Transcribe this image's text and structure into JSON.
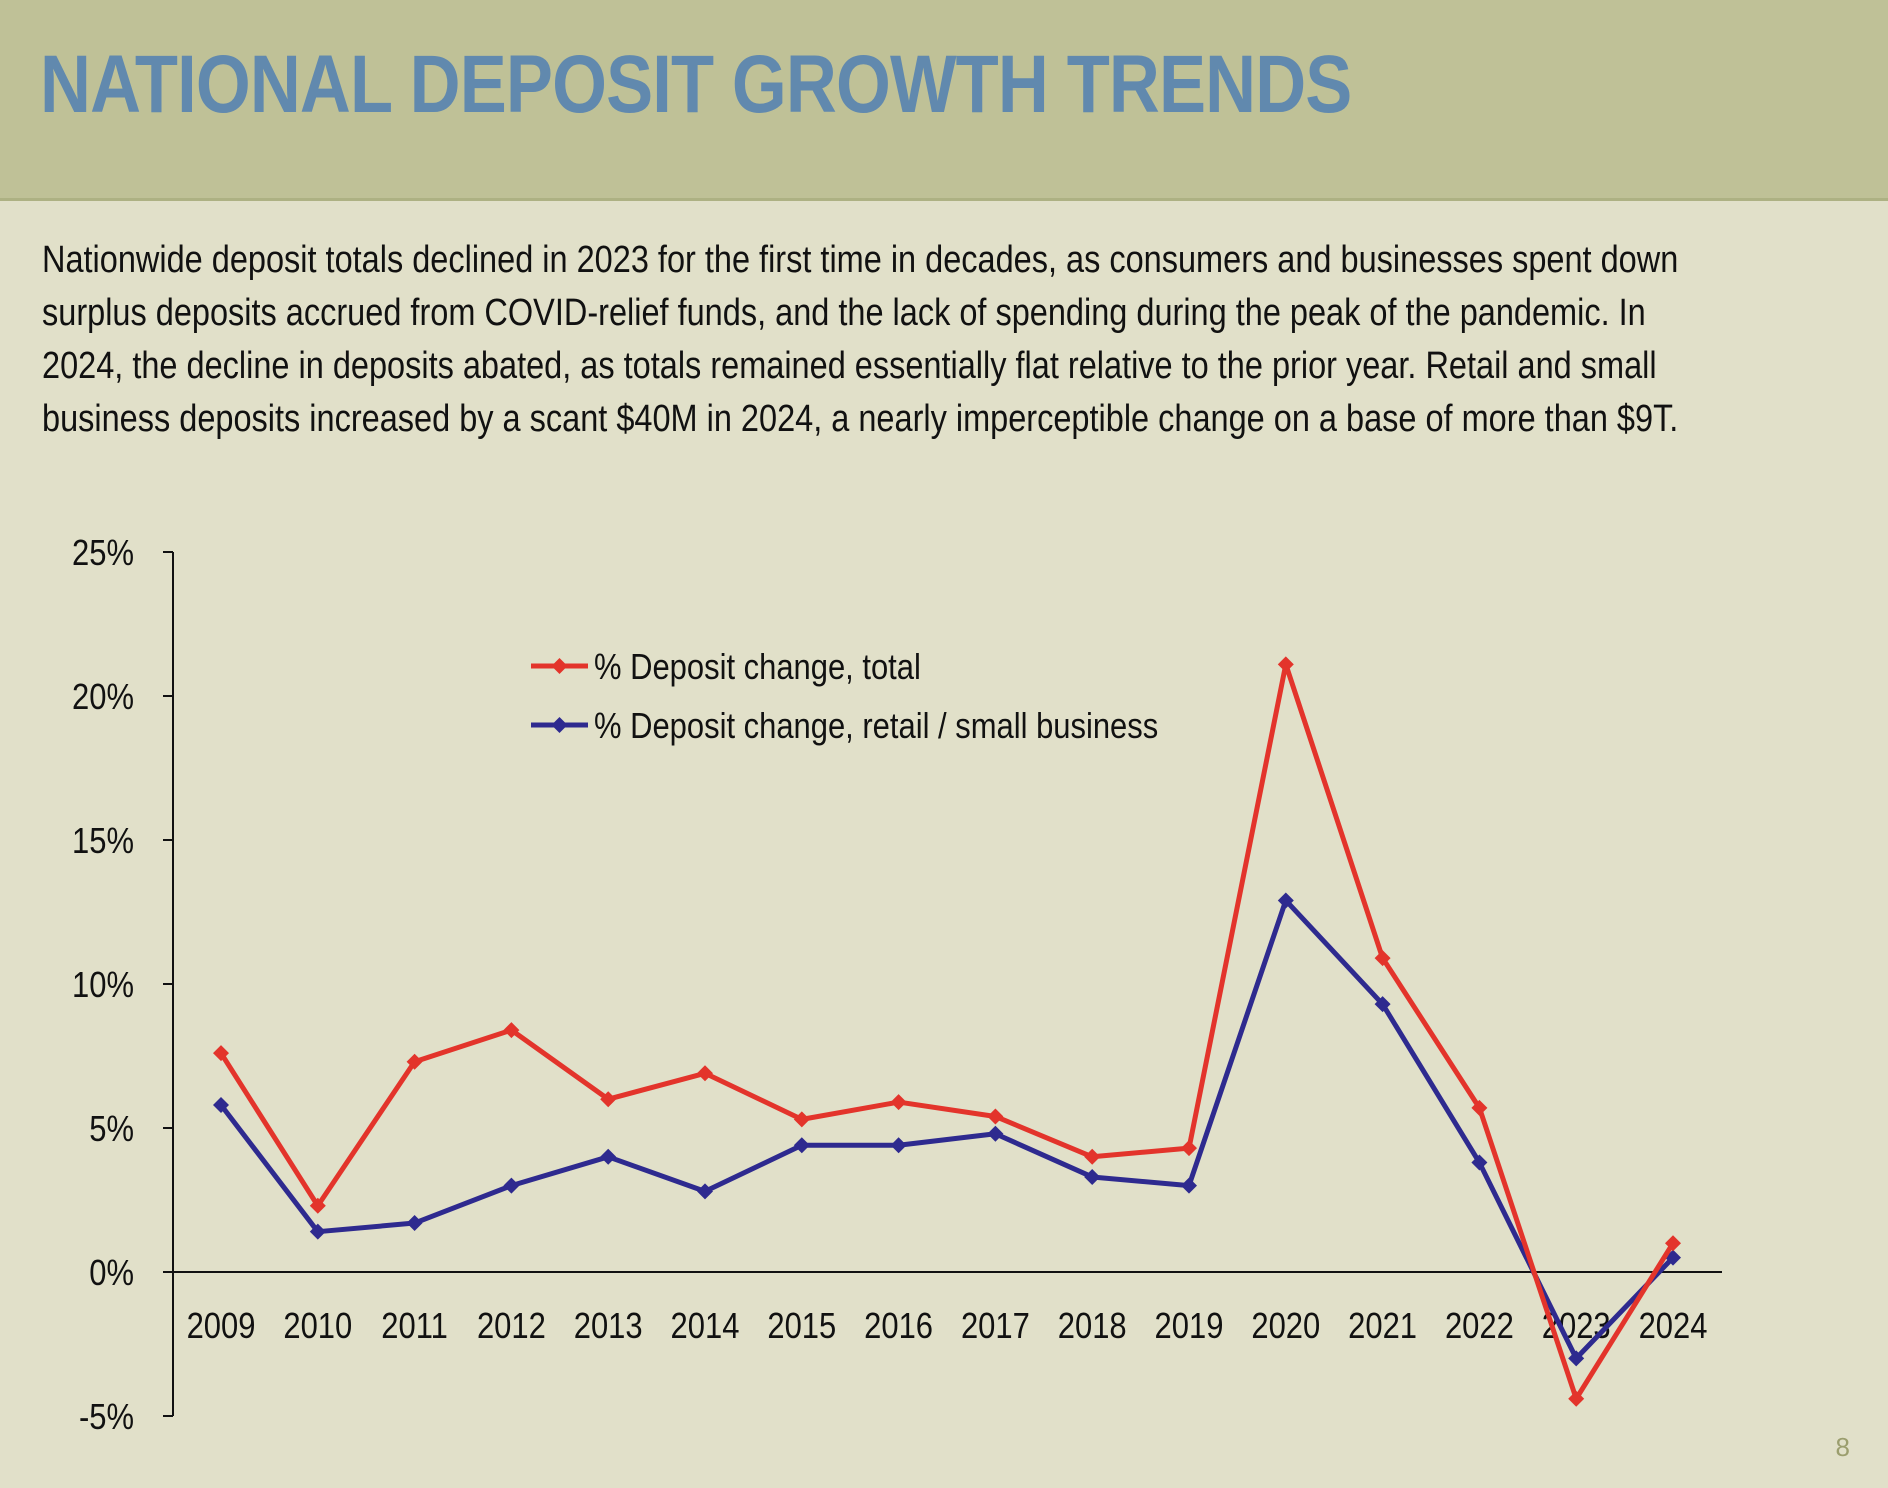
{
  "page": {
    "title": "NATIONAL DEPOSIT GROWTH TRENDS",
    "intro_lines": [
      "Nationwide deposit totals declined in 2023 for the first time in decades, as consumers and businesses spent down",
      "surplus deposits accrued from COVID-relief funds, and the lack of spending during the peak of the pandemic.  In",
      "2024, the decline in deposits abated, as totals remained essentially flat relative to the prior year.  Retail and small",
      "business deposits increased by a scant $40M in 2024, a nearly imperceptible change on a base of more than $9T."
    ],
    "page_number": "8"
  },
  "colors": {
    "header_bg": "#bfc197",
    "title": "#6189ae",
    "total_series": "#e3342b",
    "retail_series": "#2e2a8f"
  },
  "chart_data": {
    "type": "line",
    "x": [
      "2009",
      "2010",
      "2011",
      "2012",
      "2013",
      "2014",
      "2015",
      "2016",
      "2017",
      "2018",
      "2019",
      "2020",
      "2021",
      "2022",
      "2023",
      "2024"
    ],
    "series": [
      {
        "name": "% Deposit change, total",
        "color": "#e3342b",
        "marker": "diamond",
        "values": [
          7.6,
          2.3,
          7.3,
          8.4,
          6.0,
          6.9,
          5.3,
          5.9,
          5.4,
          4.0,
          4.3,
          21.1,
          10.9,
          5.7,
          -4.4,
          1.0
        ]
      },
      {
        "name": "% Deposit change, retail / small business",
        "color": "#2e2a8f",
        "marker": "diamond",
        "values": [
          5.8,
          1.4,
          1.7,
          3.0,
          4.0,
          2.8,
          4.4,
          4.4,
          4.8,
          3.3,
          3.0,
          12.9,
          9.3,
          3.8,
          -3.0,
          0.5
        ]
      }
    ],
    "ylim": [
      -5,
      25
    ],
    "yticks": [
      -5,
      0,
      5,
      10,
      15,
      20,
      25
    ],
    "ytick_labels": [
      "-5%",
      "0%",
      "5%",
      "10%",
      "15%",
      "20%",
      "25%"
    ],
    "grid": false,
    "legend_position": "top-center"
  }
}
